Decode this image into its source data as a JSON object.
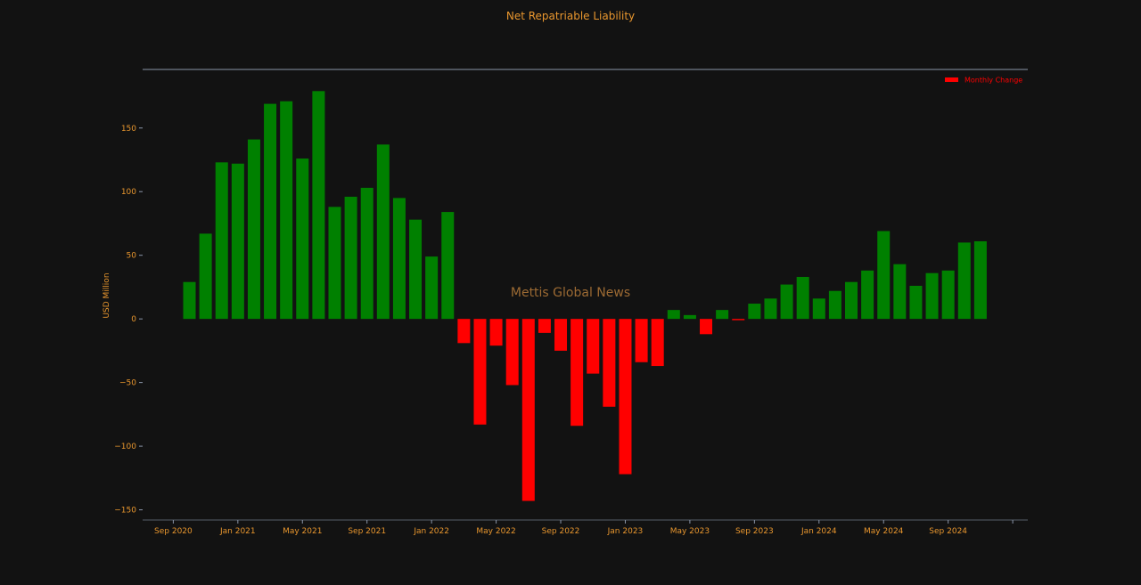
{
  "colors": {
    "background": "#121212",
    "text": "#e8962e",
    "positive": "#008000",
    "negative": "#ff0000",
    "axis": "#8a95a8",
    "watermark": "#9c6a33"
  },
  "watermark": "Mettis Global News",
  "chart_data": {
    "type": "bar",
    "title": "Net Repatriable Liability",
    "xlabel": "",
    "ylabel": "USD Million",
    "ylim": [
      -158,
      196
    ],
    "yticks": [
      -150,
      -100,
      -50,
      0,
      50,
      100,
      150
    ],
    "ytick_labels": [
      "−150",
      "−100",
      "−50",
      "0",
      "50",
      "100",
      "150"
    ],
    "x_start": "2020-10",
    "xtick_labels": [
      "Sep 2020",
      "Jan 2021",
      "May 2021",
      "Sep 2021",
      "Jan 2022",
      "May 2022",
      "Sep 2022",
      "Jan 2023",
      "May 2023",
      "Sep 2023",
      "Jan 2024",
      "May 2024",
      "Sep 2024"
    ],
    "xtick_months": [
      "2020-09",
      "2021-01",
      "2021-05",
      "2021-09",
      "2022-01",
      "2022-05",
      "2022-09",
      "2023-01",
      "2023-05",
      "2023-09",
      "2024-01",
      "2024-05",
      "2024-09"
    ],
    "legend": {
      "label": "Monthly Change",
      "position": "top-right"
    },
    "grid": false,
    "values": [
      29,
      67,
      123,
      122,
      141,
      169,
      171,
      126,
      179,
      88,
      96,
      103,
      137,
      95,
      78,
      49,
      84,
      -19,
      -83,
      -21,
      -52,
      -143,
      -11,
      -25,
      -84,
      -43,
      -69,
      -122,
      -34,
      -37,
      7,
      3,
      -12,
      7,
      -1,
      12,
      16,
      27,
      33,
      16,
      22,
      29,
      38,
      69,
      43,
      26,
      36,
      38,
      60,
      61
    ]
  }
}
